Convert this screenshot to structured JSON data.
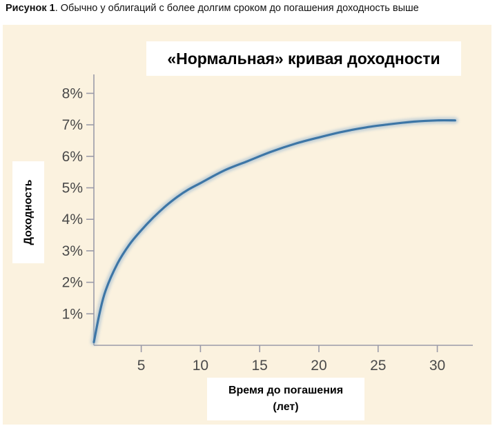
{
  "figure": {
    "caption_label": "Рисунок 1",
    "caption_text": ". Обычно у облигаций с более долгим сроком до погашения доходность выше"
  },
  "chart_data": {
    "type": "line",
    "title": "«Нормальная» кривая доходности",
    "xlabel_line1": "Время до погашения",
    "xlabel_line2": "(лет)",
    "ylabel": "Доходность",
    "xlim": [
      1,
      33
    ],
    "ylim": [
      0,
      8.6
    ],
    "x_ticks": [
      5,
      10,
      15,
      20,
      25,
      30
    ],
    "y_ticks": [
      1,
      2,
      3,
      4,
      5,
      6,
      7,
      8
    ],
    "y_tick_labels": [
      "1%",
      "2%",
      "3%",
      "4%",
      "5%",
      "6%",
      "7%",
      "8%"
    ],
    "grid": false,
    "series": [
      {
        "color": "#3d76a6",
        "x": [
          1,
          1.5,
          2,
          3,
          4,
          5,
          6,
          7,
          8,
          9,
          10,
          12,
          14,
          16,
          18,
          20,
          22,
          24,
          26,
          28,
          30,
          31.5
        ],
        "y": [
          0.1,
          1.05,
          1.75,
          2.6,
          3.2,
          3.65,
          4.05,
          4.4,
          4.7,
          4.95,
          5.15,
          5.55,
          5.85,
          6.15,
          6.4,
          6.6,
          6.78,
          6.92,
          7.02,
          7.1,
          7.14,
          7.14
        ]
      }
    ]
  }
}
